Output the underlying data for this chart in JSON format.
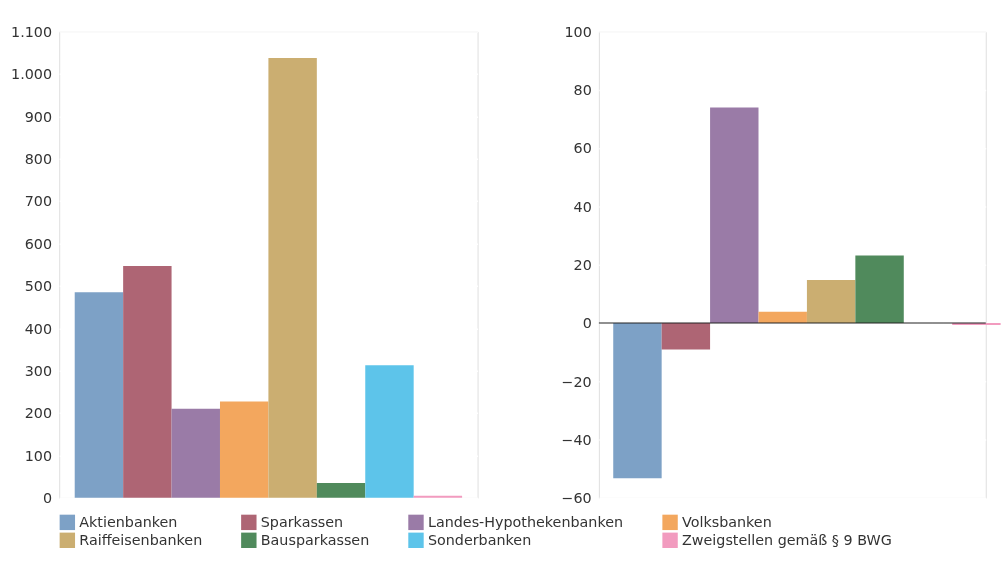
{
  "chart_data": [
    {
      "type": "bar",
      "categories": [
        null
      ],
      "legend": "bottom",
      "grid": "y",
      "ylim": [
        0,
        1100
      ],
      "yticks": [
        0,
        100,
        200,
        300,
        400,
        500,
        600,
        700,
        800,
        900,
        {
          "value": 1000,
          "label": "1.000"
        },
        {
          "value": 1100,
          "label": "1.100"
        }
      ],
      "series": [
        {
          "name": "Aktienbanken",
          "color": "#7da1c6",
          "values": [
            485
          ]
        },
        {
          "name": "Sparkassen",
          "color": "#ae6574",
          "values": [
            547
          ]
        },
        {
          "name": "Landes-Hypothekenbanken",
          "color": "#9a7ba7",
          "values": [
            210
          ]
        },
        {
          "name": "Volksbanken",
          "color": "#f3a75e",
          "values": [
            227
          ]
        },
        {
          "name": "Raiffeisenbanken",
          "color": "#cbae71",
          "values": [
            1038
          ]
        },
        {
          "name": "Bausparkassen",
          "color": "#508a5c",
          "values": [
            35
          ]
        },
        {
          "name": "Sonderbanken",
          "color": "#5dc4ea",
          "values": [
            313
          ]
        },
        {
          "name": "Zweigstellen gemäß § 9 BWG",
          "color": "#f29bbf",
          "values": [
            5
          ]
        }
      ]
    },
    {
      "type": "bar",
      "categories": [
        null
      ],
      "legend": "bottom",
      "grid": "y",
      "ylim": [
        -60,
        100
      ],
      "yticks": [
        {
          "value": -60,
          "label": "−60"
        },
        {
          "value": -40,
          "label": "−40"
        },
        {
          "value": -20,
          "label": "−20"
        },
        0,
        20,
        40,
        60,
        80,
        100
      ],
      "ref_lines": [
        {
          "axis": "y",
          "value": 0,
          "color": "#222222"
        }
      ],
      "series": [
        {
          "name": "Aktienbanken",
          "color": "#7da1c6",
          "values": [
            -53.3
          ]
        },
        {
          "name": "Sparkassen",
          "color": "#ae6574",
          "values": [
            -9.1
          ]
        },
        {
          "name": "Landes-Hypothekenbanken",
          "color": "#9a7ba7",
          "values": [
            74
          ]
        },
        {
          "name": "Volksbanken",
          "color": "#f3a75e",
          "values": [
            3.9
          ]
        },
        {
          "name": "Raiffeisenbanken",
          "color": "#cbae71",
          "values": [
            14.8
          ]
        },
        {
          "name": "Bausparkassen",
          "color": "#508a5c",
          "values": [
            23.2
          ]
        },
        {
          "name": "Sonderbanken",
          "color": "#5dc4ea",
          "values": [
            0
          ]
        },
        {
          "name": "Zweigstellen gemäß § 9 BWG",
          "color": "#f29bbf",
          "values": [
            -0.7
          ]
        }
      ]
    }
  ]
}
